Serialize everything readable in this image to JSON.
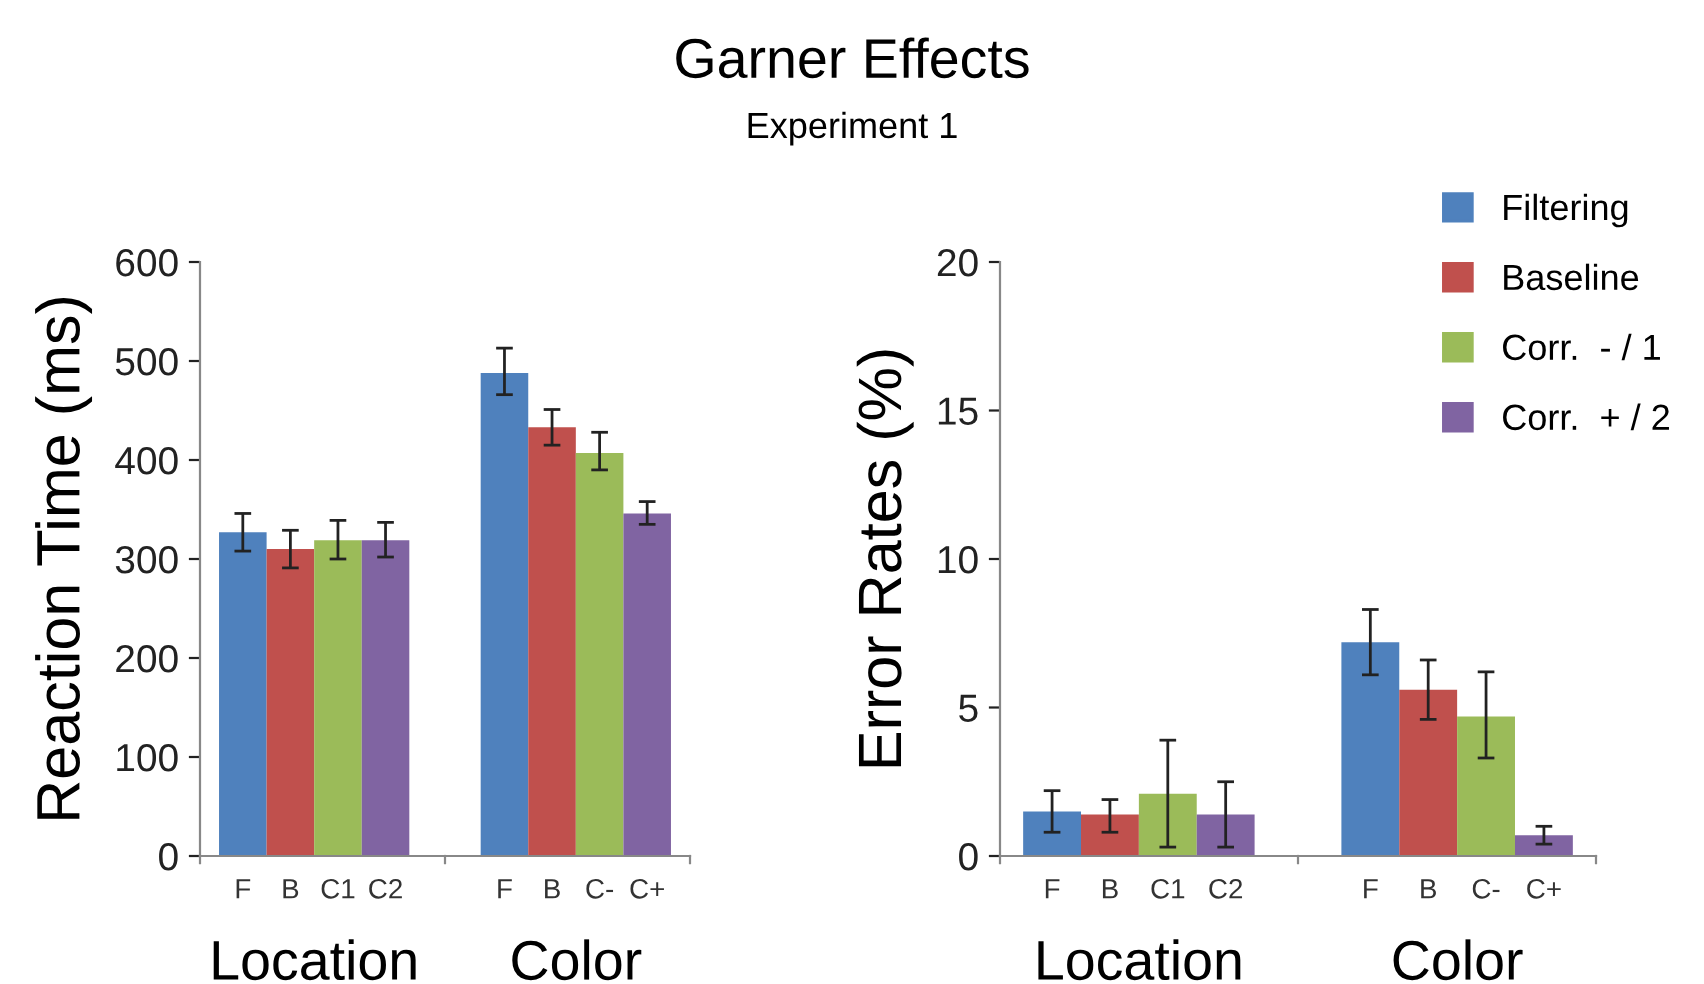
{
  "chart_data": [
    {
      "type": "other",
      "title": "Garner Effects",
      "subtitle": "Experiment 1"
    },
    {
      "type": "bar",
      "ylabel": "Reaction Time (ms)",
      "categories": [
        "F",
        "B",
        "C1",
        "C2",
        "F",
        "B",
        "C-",
        "C+"
      ],
      "annotations": [
        "Location",
        "Color"
      ],
      "series": [
        {
          "color": "#4f81bd",
          "values": [
            327,
            null,
            null,
            null,
            488,
            null,
            null,
            null
          ],
          "errors": [
            [
              308,
              346
            ],
            null,
            null,
            null,
            [
              466,
              513
            ],
            null,
            null,
            null
          ]
        },
        {
          "color": "#c0504d",
          "values": [
            null,
            310,
            null,
            null,
            null,
            433,
            null,
            null
          ],
          "errors": [
            null,
            [
              291,
              329
            ],
            null,
            null,
            null,
            [
              415,
              451
            ],
            null,
            null
          ]
        },
        {
          "color": "#9bbb59",
          "values": [
            null,
            null,
            319,
            null,
            null,
            null,
            407,
            null
          ],
          "errors": [
            null,
            null,
            [
              300,
              339
            ],
            null,
            null,
            null,
            [
              390,
              428
            ],
            null
          ]
        },
        {
          "color": "#8064a2",
          "values": [
            null,
            null,
            null,
            319,
            null,
            null,
            null,
            346
          ],
          "errors": [
            null,
            null,
            null,
            [
              302,
              337
            ],
            null,
            null,
            null,
            [
              335,
              358
            ]
          ]
        }
      ],
      "ylim": [
        0,
        600
      ],
      "yticks": [
        0,
        100,
        200,
        300,
        400,
        500,
        600
      ],
      "grid": false,
      "legend": false
    },
    {
      "type": "bar",
      "ylabel": "Error Rates (%)",
      "categories": [
        "F",
        "B",
        "C1",
        "C2",
        "F",
        "B",
        "C-",
        "C+"
      ],
      "annotations": [
        "Location",
        "Color"
      ],
      "series": [
        {
          "name": "Filtering",
          "color": "#4f81bd",
          "values": [
            1.5,
            null,
            null,
            null,
            7.2,
            null,
            null,
            null
          ],
          "errors": [
            [
              0.8,
              2.2
            ],
            null,
            null,
            null,
            [
              6.1,
              8.3
            ],
            null,
            null,
            null
          ]
        },
        {
          "name": "Baseline",
          "color": "#c0504d",
          "values": [
            null,
            1.4,
            null,
            null,
            null,
            5.6,
            null,
            null
          ],
          "errors": [
            null,
            [
              0.8,
              1.9
            ],
            null,
            null,
            null,
            [
              4.6,
              6.6
            ],
            null,
            null
          ]
        },
        {
          "name": "Corr.  - / 1",
          "color": "#9bbb59",
          "values": [
            null,
            null,
            2.1,
            null,
            null,
            null,
            4.7,
            null
          ],
          "errors": [
            null,
            null,
            [
              0.3,
              3.9
            ],
            null,
            null,
            null,
            [
              3.3,
              6.2
            ],
            null
          ]
        },
        {
          "name": "Corr.  + / 2",
          "color": "#8064a2",
          "values": [
            null,
            null,
            null,
            1.4,
            null,
            null,
            null,
            0.7
          ],
          "errors": [
            null,
            null,
            null,
            [
              0.3,
              2.5
            ],
            null,
            null,
            null,
            [
              0.4,
              1.0
            ]
          ]
        }
      ],
      "ylim": [
        0,
        20
      ],
      "yticks": [
        0,
        5,
        10,
        15,
        20
      ],
      "grid": false,
      "legend": "top right"
    }
  ]
}
